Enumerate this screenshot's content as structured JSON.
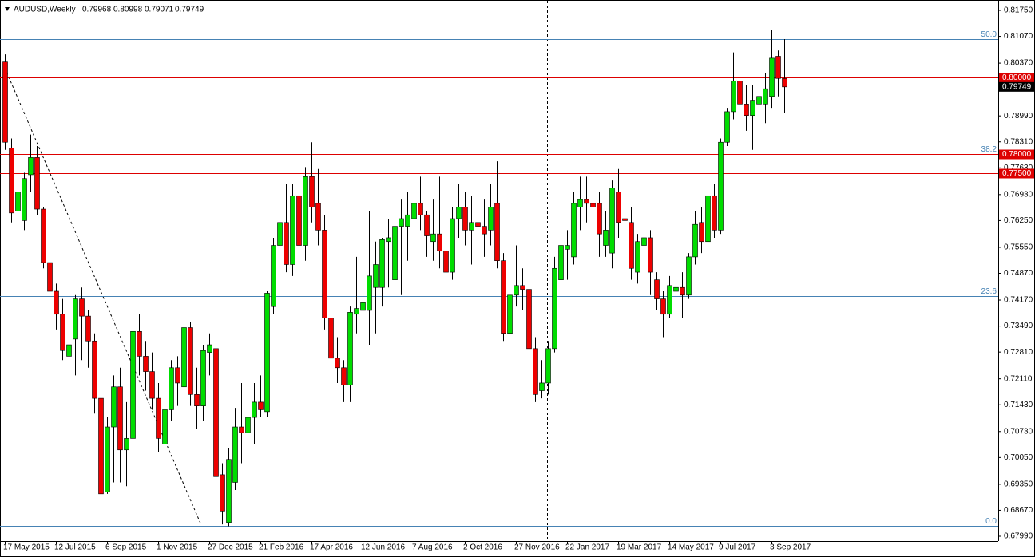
{
  "chart_data": {
    "type": "candlestick",
    "symbol": "AUDUSD,Weekly",
    "categories": [
      "17 May 2015",
      null,
      null,
      null,
      null,
      null,
      null,
      null,
      "12 Jul 2015",
      null,
      null,
      null,
      null,
      null,
      null,
      null,
      "6 Sep 2015",
      null,
      null,
      null,
      null,
      null,
      null,
      null,
      "1 Nov 2015",
      null,
      null,
      null,
      null,
      null,
      null,
      null,
      "27 Dec 2015",
      null,
      null,
      null,
      null,
      null,
      null,
      null,
      "21 Feb 2016",
      null,
      null,
      null,
      null,
      null,
      null,
      null,
      "17 Apr 2016",
      null,
      null,
      null,
      null,
      null,
      null,
      null,
      "12 Jun 2016",
      null,
      null,
      null,
      null,
      null,
      null,
      null,
      "7 Aug 2016",
      null,
      null,
      null,
      null,
      null,
      null,
      null,
      "2 Oct 2016",
      null,
      null,
      null,
      null,
      null,
      null,
      null,
      "27 Nov 2016",
      null,
      null,
      null,
      null,
      null,
      null,
      null,
      "22 Jan 2017",
      null,
      null,
      null,
      null,
      null,
      null,
      null,
      "19 Mar 2017",
      null,
      null,
      null,
      null,
      null,
      null,
      null,
      "14 May 2017",
      null,
      null,
      null,
      null,
      null,
      null,
      null,
      "9 Jul 2017",
      null,
      null,
      null,
      null,
      null,
      null,
      null,
      "3 Sep 2017",
      null,
      null
    ],
    "open": [
      0.804,
      0.7815,
      0.765,
      0.7625,
      0.7745,
      0.779,
      0.7655,
      0.7515,
      0.744,
      0.738,
      0.727,
      0.7315,
      0.742,
      0.7375,
      0.731,
      0.716,
      0.6915,
      0.7085,
      0.719,
      0.7025,
      0.7055,
      0.7335,
      0.727,
      0.723,
      0.716,
      0.704,
      0.713,
      0.724,
      0.719,
      0.7345,
      0.717,
      0.714,
      0.728,
      0.729,
      0.696,
      0.6835,
      0.694,
      0.7085,
      0.707,
      0.711,
      0.715,
      0.7125,
      0.74,
      0.756,
      0.762,
      0.751,
      0.769,
      0.756,
      0.774,
      0.767,
      0.76,
      0.737,
      0.7265,
      0.724,
      0.7195,
      0.738,
      0.739,
      0.739,
      0.745,
      0.745,
      0.757,
      0.747,
      0.761,
      0.761,
      0.763,
      0.767,
      0.764,
      0.757,
      0.759,
      0.7545,
      0.749,
      0.763,
      0.766,
      0.76,
      0.762,
      0.761,
      0.76,
      0.767,
      0.752,
      0.733,
      0.743,
      0.7455,
      0.7445,
      0.729,
      0.718,
      0.72,
      0.729,
      0.747,
      0.755,
      0.753,
      0.766,
      0.768,
      0.767,
      0.767,
      0.756,
      0.754,
      0.77,
      0.763,
      0.762,
      0.749,
      0.756,
      0.758,
      0.747,
      0.742,
      0.738,
      0.744,
      0.745,
      0.743,
      0.753,
      0.762,
      0.757,
      0.769,
      0.76,
      0.783,
      0.791,
      0.799,
      0.793,
      0.79,
      0.793,
      0.793,
      0.795,
      0.8055,
      0.79968
    ],
    "high": [
      0.806,
      0.784,
      0.775,
      0.775,
      0.785,
      0.782,
      0.766,
      0.7555,
      0.746,
      0.742,
      0.742,
      0.743,
      0.745,
      0.739,
      0.733,
      0.718,
      0.711,
      0.722,
      0.724,
      0.715,
      0.738,
      0.738,
      0.731,
      0.728,
      0.72,
      0.716,
      0.726,
      0.727,
      0.7385,
      0.736,
      0.724,
      0.73,
      0.733,
      0.73,
      0.699,
      0.703,
      0.7135,
      0.72,
      0.718,
      0.72,
      0.722,
      0.744,
      0.758,
      0.765,
      0.772,
      0.772,
      0.77,
      0.7765,
      0.783,
      0.776,
      0.764,
      0.739,
      0.732,
      0.726,
      0.74,
      0.753,
      0.748,
      0.765,
      0.757,
      0.758,
      0.763,
      0.764,
      0.768,
      0.77,
      0.776,
      0.774,
      0.765,
      0.768,
      0.774,
      0.762,
      0.766,
      0.772,
      0.77,
      0.769,
      0.77,
      0.768,
      0.772,
      0.778,
      0.754,
      0.747,
      0.756,
      0.75,
      0.752,
      0.732,
      0.726,
      0.731,
      0.753,
      0.758,
      0.76,
      0.77,
      0.774,
      0.774,
      0.775,
      0.77,
      0.765,
      0.773,
      0.776,
      0.768,
      0.766,
      0.759,
      0.762,
      0.76,
      0.749,
      0.744,
      0.748,
      0.752,
      0.749,
      0.754,
      0.765,
      0.766,
      0.772,
      0.772,
      0.784,
      0.792,
      0.8065,
      0.806,
      0.798,
      0.798,
      0.798,
      0.801,
      0.8125,
      0.807,
      0.80998
    ],
    "low": [
      0.781,
      0.762,
      0.76,
      0.76,
      0.77,
      0.764,
      0.75,
      0.742,
      0.734,
      0.726,
      0.725,
      0.722,
      0.726,
      0.724,
      0.712,
      0.69,
      0.691,
      0.694,
      0.694,
      0.693,
      0.703,
      0.722,
      0.718,
      0.713,
      0.702,
      0.702,
      0.71,
      0.714,
      0.716,
      0.714,
      0.708,
      0.71,
      0.722,
      0.693,
      0.683,
      0.6825,
      0.692,
      0.699,
      0.703,
      0.704,
      0.711,
      0.711,
      0.738,
      0.75,
      0.749,
      0.748,
      0.75,
      0.752,
      0.762,
      0.756,
      0.734,
      0.724,
      0.72,
      0.715,
      0.715,
      0.733,
      0.728,
      0.73,
      0.733,
      0.74,
      0.745,
      0.743,
      0.743,
      0.752,
      0.757,
      0.76,
      0.753,
      0.752,
      0.75,
      0.745,
      0.747,
      0.758,
      0.756,
      0.751,
      0.755,
      0.753,
      0.756,
      0.75,
      0.731,
      0.73,
      0.74,
      0.739,
      0.727,
      0.715,
      0.716,
      0.717,
      0.728,
      0.743,
      0.747,
      0.751,
      0.76,
      0.762,
      0.762,
      0.753,
      0.753,
      0.75,
      0.758,
      0.757,
      0.747,
      0.746,
      0.75,
      0.743,
      0.739,
      0.732,
      0.737,
      0.739,
      0.737,
      0.742,
      0.751,
      0.754,
      0.756,
      0.758,
      0.759,
      0.782,
      0.789,
      0.788,
      0.786,
      0.781,
      0.788,
      0.788,
      0.792,
      0.795,
      0.79071
    ],
    "close": [
      0.783,
      0.7645,
      0.77,
      0.7735,
      0.779,
      0.7655,
      0.7515,
      0.744,
      0.738,
      0.7285,
      0.73,
      0.742,
      0.7375,
      0.731,
      0.716,
      0.691,
      0.7085,
      0.719,
      0.7025,
      0.7055,
      0.7335,
      0.727,
      0.723,
      0.716,
      0.7055,
      0.713,
      0.724,
      0.72,
      0.7345,
      0.717,
      0.714,
      0.7285,
      0.73,
      0.6955,
      0.6865,
      0.7,
      0.7085,
      0.707,
      0.711,
      0.715,
      0.713,
      0.7435,
      0.756,
      0.762,
      0.751,
      0.769,
      0.756,
      0.774,
      0.766,
      0.76,
      0.737,
      0.7265,
      0.724,
      0.7195,
      0.7385,
      0.7395,
      0.741,
      0.748,
      0.751,
      0.7575,
      0.758,
      0.761,
      0.763,
      0.764,
      0.767,
      0.764,
      0.7585,
      0.759,
      0.7545,
      0.749,
      0.763,
      0.766,
      0.76,
      0.762,
      0.761,
      0.759,
      0.766,
      0.752,
      0.733,
      0.743,
      0.7455,
      0.7445,
      0.729,
      0.717,
      0.72,
      0.729,
      0.75,
      0.756,
      0.756,
      0.767,
      0.768,
      0.767,
      0.766,
      0.759,
      0.76,
      0.771,
      0.762,
      0.7625,
      0.75,
      0.757,
      0.758,
      0.749,
      0.742,
      0.738,
      0.7455,
      0.745,
      0.743,
      0.753,
      0.7615,
      0.757,
      0.769,
      0.76,
      0.783,
      0.791,
      0.799,
      0.793,
      0.79,
      0.794,
      0.795,
      0.797,
      0.805,
      0.7997,
      0.79749
    ],
    "up_color": "#00dd00",
    "down_color": "#ee0000",
    "ylim": [
      0.6799,
      0.8175
    ],
    "yticks": [
      {
        "value": 0.8175,
        "label": "0.81750"
      },
      {
        "value": 0.8107,
        "label": "0.81070"
      },
      {
        "value": 0.8037,
        "label": "0.80370"
      },
      {
        "value": 0.7899,
        "label": "0.78990"
      },
      {
        "value": 0.7831,
        "label": "0.78310"
      },
      {
        "value": 0.7763,
        "label": "0.77630"
      },
      {
        "value": 0.7693,
        "label": "0.76930"
      },
      {
        "value": 0.7625,
        "label": "0.76250"
      },
      {
        "value": 0.7555,
        "label": "0.75550"
      },
      {
        "value": 0.7487,
        "label": "0.74870"
      },
      {
        "value": 0.7417,
        "label": "0.74170"
      },
      {
        "value": 0.7349,
        "label": "0.73490"
      },
      {
        "value": 0.7281,
        "label": "0.72810"
      },
      {
        "value": 0.7211,
        "label": "0.72110"
      },
      {
        "value": 0.7143,
        "label": "0.71430"
      },
      {
        "value": 0.7073,
        "label": "0.70730"
      },
      {
        "value": 0.7005,
        "label": "0.70050"
      },
      {
        "value": 0.6935,
        "label": "0.69350"
      },
      {
        "value": 0.6867,
        "label": "0.68670"
      },
      {
        "value": 0.6799,
        "label": "0.67990"
      }
    ],
    "levels": [
      {
        "value": 0.8,
        "label": "0.80000"
      },
      {
        "value": 0.78,
        "label": "0.78000"
      },
      {
        "value": 0.775,
        "label": "0.77500"
      }
    ],
    "level_color": "#dd0000",
    "fibonacci": [
      {
        "value": 0.81,
        "label": "50.0"
      },
      {
        "value": 0.78,
        "label": "38.2"
      },
      {
        "value": 0.7428,
        "label": "23.6"
      },
      {
        "value": 0.6827,
        "label": "0.0"
      }
    ],
    "fib_color": "#4682b4"
  }
}
